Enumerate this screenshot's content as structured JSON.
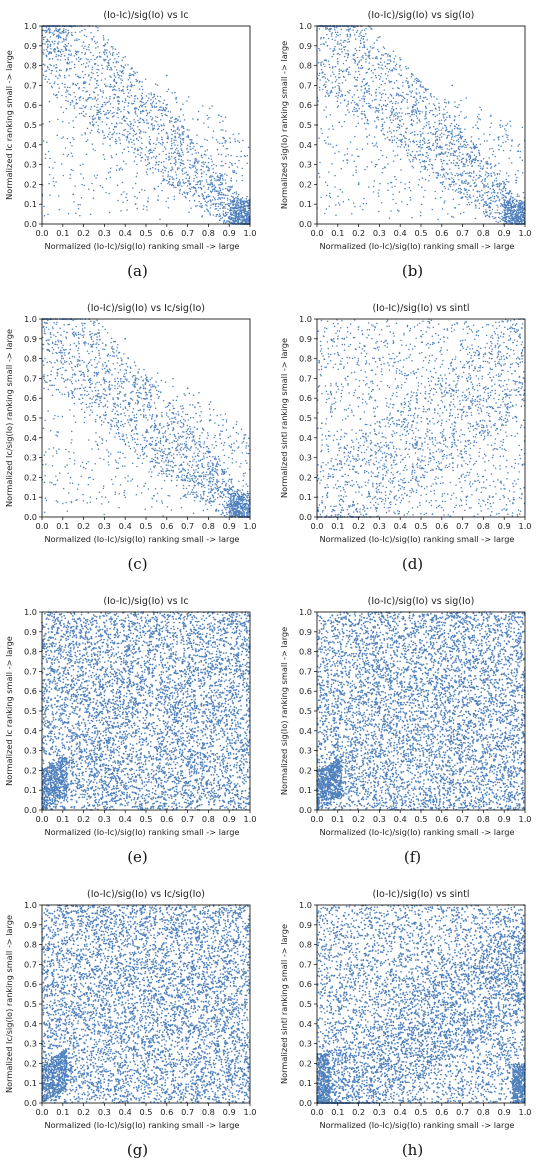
{
  "colors": {
    "marker": "#4f81bd",
    "axis": "#000000",
    "background": "#ffffff"
  },
  "panels": [
    {
      "label": "(a)",
      "title": "(Io-Ic)/sig(Io) vs Ic",
      "xlabel": "Normalized (Io-Ic)/sig(Io) ranking small -> large",
      "ylabel": "Normalized Ic ranking small -> large"
    },
    {
      "label": "(b)",
      "title": "(Io-Ic)/sig(Io) vs sig(Io)",
      "xlabel": "Normalized (Io-Ic)/sig(Io) ranking small -> large",
      "ylabel": "Normalized sig(Io) ranking small -> large"
    },
    {
      "label": "(c)",
      "title": "(Io-Ic)/sig(Io) vs Ic/sig(Io)",
      "xlabel": "Normalized (Io-Ic)/sig(Io) ranking small -> large",
      "ylabel": "Normalized Ic/sig(Io) ranking small -> large"
    },
    {
      "label": "(d)",
      "title": "(Io-Ic)/sig(Io) vs sintl",
      "xlabel": "Normalized (Io-Ic)/sig(Io) ranking small -> large",
      "ylabel": "Normalized sintl ranking small -> large"
    },
    {
      "label": "(e)",
      "title": "(Io-Ic)/sig(Io) vs Ic",
      "xlabel": "Normalized (Io-Ic)/sig(Io) ranking small -> large",
      "ylabel": "Normalized Ic ranking small -> large"
    },
    {
      "label": "(f)",
      "title": "(Io-Ic)/sig(Io) vs sig(Io)",
      "xlabel": "Normalized (Io-Ic)/sig(Io) ranking small -> large",
      "ylabel": "Normalized sig(Io) ranking small -> large"
    },
    {
      "label": "(g)",
      "title": "(Io-Ic)/sig(Io) vs Ic/sig(Io)",
      "xlabel": "Normalized (Io-Ic)/sig(Io) ranking small -> large",
      "ylabel": "Normalized Ic/sig(Io) ranking small -> large"
    },
    {
      "label": "(h)",
      "title": "(Io-Ic)/sig(Io) vs sintl",
      "xlabel": "Normalized (Io-Ic)/sig(Io) ranking small -> large",
      "ylabel": "Normalized sintl ranking small -> large"
    }
  ],
  "chart_data": [
    {
      "type": "scatter",
      "title": "(Io-Ic)/sig(Io) vs Ic",
      "xlabel": "Normalized (Io-Ic)/sig(Io) ranking small -> large",
      "ylabel": "Normalized Ic ranking small -> large",
      "xlim": [
        0,
        1
      ],
      "ylim": [
        0,
        1
      ],
      "xticks": [
        0.0,
        0.1,
        0.2,
        0.3,
        0.4,
        0.5,
        0.6,
        0.7,
        0.8,
        0.9,
        1.0
      ],
      "yticks": [
        0.0,
        0.1,
        0.2,
        0.3,
        0.4,
        0.5,
        0.6,
        0.7,
        0.8,
        0.9,
        1.0
      ],
      "grid": false,
      "points": [
        [
          0.05,
          0.92
        ],
        [
          0.08,
          0.85
        ],
        [
          0.12,
          0.78
        ],
        [
          0.15,
          0.71
        ],
        [
          0.22,
          0.63
        ],
        [
          0.28,
          0.58
        ],
        [
          0.35,
          0.49
        ],
        [
          0.41,
          0.44
        ],
        [
          0.48,
          0.38
        ],
        [
          0.55,
          0.31
        ],
        [
          0.62,
          0.27
        ],
        [
          0.68,
          0.21
        ],
        [
          0.74,
          0.17
        ],
        [
          0.81,
          0.12
        ],
        [
          0.87,
          0.08
        ],
        [
          0.93,
          0.04
        ],
        [
          0.97,
          0.02
        ],
        [
          0.3,
          0.9
        ],
        [
          0.6,
          0.75
        ],
        [
          0.85,
          0.55
        ],
        [
          0.15,
          0.15
        ],
        [
          0.45,
          0.1
        ]
      ]
    },
    {
      "type": "scatter",
      "title": "(Io-Ic)/sig(Io) vs sig(Io)",
      "xlabel": "Normalized (Io-Ic)/sig(Io) ranking small -> large",
      "ylabel": "Normalized sig(Io) ranking small -> large",
      "xlim": [
        0,
        1
      ],
      "ylim": [
        0,
        1
      ],
      "xticks": [
        0.0,
        0.1,
        0.2,
        0.3,
        0.4,
        0.5,
        0.6,
        0.7,
        0.8,
        0.9,
        1.0
      ],
      "yticks": [
        0.0,
        0.1,
        0.2,
        0.3,
        0.4,
        0.5,
        0.6,
        0.7,
        0.8,
        0.9,
        1.0
      ],
      "grid": false,
      "points": [
        [
          0.05,
          0.9
        ],
        [
          0.1,
          0.82
        ],
        [
          0.18,
          0.74
        ],
        [
          0.25,
          0.67
        ],
        [
          0.32,
          0.6
        ],
        [
          0.4,
          0.52
        ],
        [
          0.47,
          0.45
        ],
        [
          0.54,
          0.39
        ],
        [
          0.61,
          0.32
        ],
        [
          0.69,
          0.25
        ],
        [
          0.76,
          0.19
        ],
        [
          0.83,
          0.13
        ],
        [
          0.9,
          0.07
        ],
        [
          0.96,
          0.03
        ],
        [
          0.35,
          0.85
        ],
        [
          0.65,
          0.7
        ],
        [
          0.88,
          0.5
        ],
        [
          0.2,
          0.2
        ]
      ]
    },
    {
      "type": "scatter",
      "title": "(Io-Ic)/sig(Io) vs Ic/sig(Io)",
      "xlabel": "Normalized (Io-Ic)/sig(Io) ranking small -> large",
      "ylabel": "Normalized Ic/sig(Io) ranking small -> large",
      "xlim": [
        0,
        1
      ],
      "ylim": [
        0,
        1
      ],
      "xticks": [
        0.0,
        0.1,
        0.2,
        0.3,
        0.4,
        0.5,
        0.6,
        0.7,
        0.8,
        0.9,
        1.0
      ],
      "yticks": [
        0.0,
        0.1,
        0.2,
        0.3,
        0.4,
        0.5,
        0.6,
        0.7,
        0.8,
        0.9,
        1.0
      ],
      "grid": false,
      "points": [
        [
          0.04,
          0.93
        ],
        [
          0.09,
          0.84
        ],
        [
          0.16,
          0.76
        ],
        [
          0.23,
          0.68
        ],
        [
          0.3,
          0.6
        ],
        [
          0.38,
          0.52
        ],
        [
          0.45,
          0.45
        ],
        [
          0.52,
          0.37
        ],
        [
          0.6,
          0.3
        ],
        [
          0.67,
          0.23
        ],
        [
          0.75,
          0.17
        ],
        [
          0.82,
          0.11
        ],
        [
          0.89,
          0.06
        ],
        [
          0.95,
          0.02
        ],
        [
          0.4,
          0.9
        ],
        [
          0.7,
          0.65
        ],
        [
          0.92,
          0.45
        ],
        [
          0.2,
          0.25
        ]
      ]
    },
    {
      "type": "scatter",
      "title": "(Io-Ic)/sig(Io) vs sintl",
      "xlabel": "Normalized (Io-Ic)/sig(Io) ranking small -> large",
      "ylabel": "Normalized sintl ranking small -> large",
      "xlim": [
        0,
        1
      ],
      "ylim": [
        0,
        1
      ],
      "xticks": [
        0.0,
        0.1,
        0.2,
        0.3,
        0.4,
        0.5,
        0.6,
        0.7,
        0.8,
        0.9,
        1.0
      ],
      "yticks": [
        0.0,
        0.1,
        0.2,
        0.3,
        0.4,
        0.5,
        0.6,
        0.7,
        0.8,
        0.9,
        1.0
      ],
      "grid": false,
      "points": [
        [
          0.05,
          0.1
        ],
        [
          0.12,
          0.25
        ],
        [
          0.2,
          0.35
        ],
        [
          0.28,
          0.42
        ],
        [
          0.36,
          0.5
        ],
        [
          0.44,
          0.56
        ],
        [
          0.52,
          0.6
        ],
        [
          0.6,
          0.66
        ],
        [
          0.68,
          0.7
        ],
        [
          0.76,
          0.75
        ],
        [
          0.84,
          0.8
        ],
        [
          0.92,
          0.85
        ],
        [
          0.1,
          0.9
        ],
        [
          0.3,
          0.8
        ],
        [
          0.5,
          0.2
        ],
        [
          0.7,
          0.3
        ],
        [
          0.9,
          0.1
        ],
        [
          0.95,
          0.95
        ]
      ]
    },
    {
      "type": "scatter",
      "title": "(Io-Ic)/sig(Io) vs Ic",
      "xlabel": "Normalized (Io-Ic)/sig(Io) ranking small -> large",
      "ylabel": "Normalized Ic ranking small -> large",
      "xlim": [
        0,
        1
      ],
      "ylim": [
        0,
        1
      ],
      "xticks": [
        0.0,
        0.1,
        0.2,
        0.3,
        0.4,
        0.5,
        0.6,
        0.7,
        0.8,
        0.9,
        1.0
      ],
      "yticks": [
        0.0,
        0.1,
        0.2,
        0.3,
        0.4,
        0.5,
        0.6,
        0.7,
        0.8,
        0.9,
        1.0
      ],
      "grid": false,
      "points": [
        [
          0.05,
          0.05
        ],
        [
          0.15,
          0.9
        ],
        [
          0.25,
          0.3
        ],
        [
          0.35,
          0.7
        ],
        [
          0.45,
          0.5
        ],
        [
          0.55,
          0.2
        ],
        [
          0.65,
          0.85
        ],
        [
          0.75,
          0.4
        ],
        [
          0.85,
          0.65
        ],
        [
          0.95,
          0.95
        ],
        [
          0.1,
          0.6
        ],
        [
          0.5,
          0.95
        ],
        [
          0.9,
          0.15
        ],
        [
          0.3,
          0.1
        ],
        [
          0.7,
          0.6
        ]
      ]
    },
    {
      "type": "scatter",
      "title": "(Io-Ic)/sig(Io) vs sig(Io)",
      "xlabel": "Normalized (Io-Ic)/sig(Io) ranking small -> large",
      "ylabel": "Normalized sig(Io) ranking small -> large",
      "xlim": [
        0,
        1
      ],
      "ylim": [
        0,
        1
      ],
      "xticks": [
        0.0,
        0.1,
        0.2,
        0.3,
        0.4,
        0.5,
        0.6,
        0.7,
        0.8,
        0.9,
        1.0
      ],
      "yticks": [
        0.0,
        0.1,
        0.2,
        0.3,
        0.4,
        0.5,
        0.6,
        0.7,
        0.8,
        0.9,
        1.0
      ],
      "grid": false,
      "points": [
        [
          0.05,
          0.1
        ],
        [
          0.15,
          0.85
        ],
        [
          0.25,
          0.25
        ],
        [
          0.35,
          0.65
        ],
        [
          0.45,
          0.45
        ],
        [
          0.55,
          0.15
        ],
        [
          0.65,
          0.8
        ],
        [
          0.75,
          0.35
        ],
        [
          0.85,
          0.7
        ],
        [
          0.95,
          0.97
        ],
        [
          0.1,
          0.55
        ],
        [
          0.5,
          0.92
        ],
        [
          0.9,
          0.2
        ],
        [
          0.3,
          0.05
        ],
        [
          0.7,
          0.55
        ]
      ]
    },
    {
      "type": "scatter",
      "title": "(Io-Ic)/sig(Io) vs Ic/sig(Io)",
      "xlabel": "Normalized (Io-Ic)/sig(Io) ranking small -> large",
      "ylabel": "Normalized Ic/sig(Io) ranking small -> large",
      "xlim": [
        0,
        1
      ],
      "ylim": [
        0,
        1
      ],
      "xticks": [
        0.0,
        0.1,
        0.2,
        0.3,
        0.4,
        0.5,
        0.6,
        0.7,
        0.8,
        0.9,
        1.0
      ],
      "yticks": [
        0.0,
        0.1,
        0.2,
        0.3,
        0.4,
        0.5,
        0.6,
        0.7,
        0.8,
        0.9,
        1.0
      ],
      "grid": false,
      "points": [
        [
          0.05,
          0.08
        ],
        [
          0.15,
          0.88
        ],
        [
          0.25,
          0.28
        ],
        [
          0.35,
          0.68
        ],
        [
          0.45,
          0.48
        ],
        [
          0.55,
          0.18
        ],
        [
          0.65,
          0.82
        ],
        [
          0.75,
          0.38
        ],
        [
          0.85,
          0.62
        ],
        [
          0.95,
          0.96
        ],
        [
          0.1,
          0.58
        ],
        [
          0.5,
          0.93
        ],
        [
          0.9,
          0.18
        ],
        [
          0.3,
          0.12
        ],
        [
          0.7,
          0.58
        ]
      ]
    },
    {
      "type": "scatter",
      "title": "(Io-Ic)/sig(Io) vs sintl",
      "xlabel": "Normalized (Io-Ic)/sig(Io) ranking small -> large",
      "ylabel": "Normalized sintl ranking small -> large",
      "xlim": [
        0,
        1
      ],
      "ylim": [
        0,
        1
      ],
      "xticks": [
        0.0,
        0.1,
        0.2,
        0.3,
        0.4,
        0.5,
        0.6,
        0.7,
        0.8,
        0.9,
        1.0
      ],
      "yticks": [
        0.0,
        0.1,
        0.2,
        0.3,
        0.4,
        0.5,
        0.6,
        0.7,
        0.8,
        0.9,
        1.0
      ],
      "grid": false,
      "points": [
        [
          0.03,
          0.05
        ],
        [
          0.1,
          0.15
        ],
        [
          0.2,
          0.3
        ],
        [
          0.3,
          0.38
        ],
        [
          0.4,
          0.45
        ],
        [
          0.5,
          0.55
        ],
        [
          0.6,
          0.6
        ],
        [
          0.7,
          0.68
        ],
        [
          0.8,
          0.74
        ],
        [
          0.9,
          0.8
        ],
        [
          0.97,
          0.05
        ],
        [
          0.15,
          0.9
        ],
        [
          0.45,
          0.2
        ],
        [
          0.65,
          0.95
        ],
        [
          0.85,
          0.35
        ]
      ]
    }
  ]
}
